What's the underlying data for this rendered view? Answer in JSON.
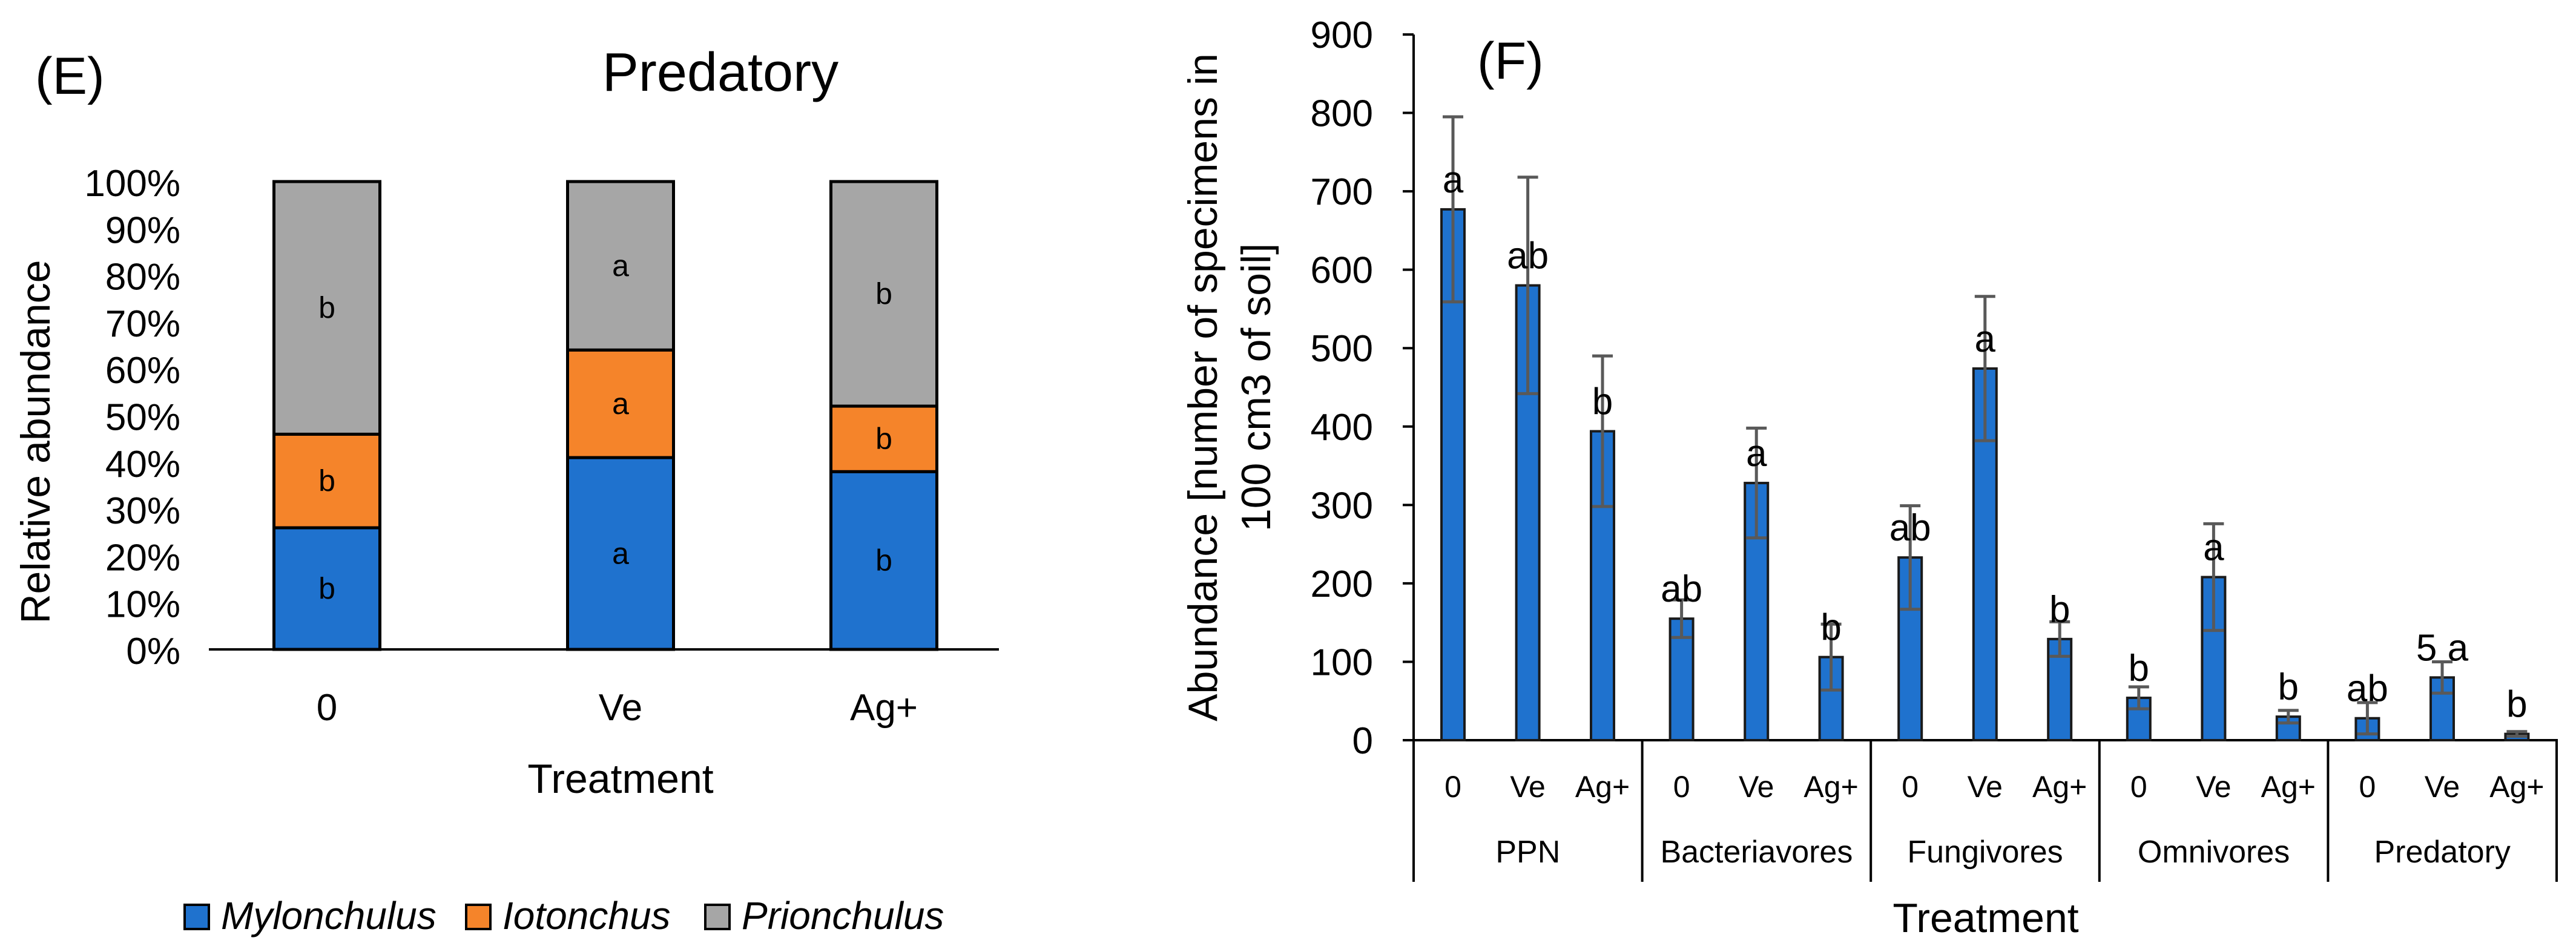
{
  "panels": {
    "left_label": "(E)",
    "right_label": "(F)"
  },
  "colors": {
    "Mylonchulus": "#1F72CE",
    "Iotonchus": "#F5842A",
    "Prionchulus": "#A6A6A6",
    "bar_blue": "#1F72CE",
    "error_bar": "#595959"
  },
  "chart_data": [
    {
      "type": "bar",
      "stacked": true,
      "percent": true,
      "title": "Predatory",
      "xlabel": "Treatment",
      "ylabel": "Relative abundance",
      "ylim": [
        0,
        100
      ],
      "yticks": [
        "0%",
        "10%",
        "20%",
        "30%",
        "40%",
        "50%",
        "60%",
        "70%",
        "80%",
        "90%",
        "100%"
      ],
      "categories": [
        "0",
        "Ve",
        "Ag+"
      ],
      "series": [
        {
          "name": "Mylonchulus",
          "values": [
            26,
            41,
            38
          ],
          "labels": [
            "b",
            "a",
            "b"
          ]
        },
        {
          "name": "Iotonchus",
          "values": [
            20,
            23,
            14
          ],
          "labels": [
            "b",
            "a",
            "b"
          ]
        },
        {
          "name": "Prionchulus",
          "values": [
            54,
            36,
            48
          ],
          "labels": [
            "b",
            "a",
            "b"
          ]
        }
      ],
      "legend": {
        "position": "bottom",
        "italic": true
      },
      "grid": false
    },
    {
      "type": "bar",
      "xlabel": "Treatment",
      "ylabel_lines": [
        "Abundance [number of specimens in",
        "100 cm3 of soil]"
      ],
      "ylim": [
        0,
        900
      ],
      "yticks": [
        0,
        100,
        200,
        300,
        400,
        500,
        600,
        700,
        800,
        900
      ],
      "grid": false,
      "groups": [
        {
          "name": "PPN",
          "bars": [
            {
              "x": "0",
              "value": 677,
              "error": 118,
              "label": "a"
            },
            {
              "x": "Ve",
              "value": 580,
              "error": 138,
              "label": "ab"
            },
            {
              "x": "Ag+",
              "value": 394,
              "error": 96,
              "label": "b"
            }
          ]
        },
        {
          "name": "Bacteriavores",
          "bars": [
            {
              "x": "0",
              "value": 155,
              "error": 24,
              "label": "ab"
            },
            {
              "x": "Ve",
              "value": 328,
              "error": 70,
              "label": "a"
            },
            {
              "x": "Ag+",
              "value": 106,
              "error": 42,
              "label": "b"
            }
          ]
        },
        {
          "name": "Fungivores",
          "bars": [
            {
              "x": "0",
              "value": 233,
              "error": 66,
              "label": "ab"
            },
            {
              "x": "Ve",
              "value": 474,
              "error": 92,
              "label": "a"
            },
            {
              "x": "Ag+",
              "value": 129,
              "error": 22,
              "label": "b"
            }
          ]
        },
        {
          "name": "Omnivores",
          "bars": [
            {
              "x": "0",
              "value": 54,
              "error": 14,
              "label": "b"
            },
            {
              "x": "Ve",
              "value": 208,
              "error": 68,
              "label": "a"
            },
            {
              "x": "Ag+",
              "value": 30,
              "error": 8,
              "label": "b"
            }
          ]
        },
        {
          "name": "Predatory",
          "bars": [
            {
              "x": "0",
              "value": 28,
              "error": 20,
              "label": "ab"
            },
            {
              "x": "Ve",
              "value": 80,
              "error": 20,
              "label": "5 a"
            },
            {
              "x": "Ag+",
              "value": 8,
              "error": 3,
              "label": "b"
            }
          ]
        }
      ]
    }
  ]
}
